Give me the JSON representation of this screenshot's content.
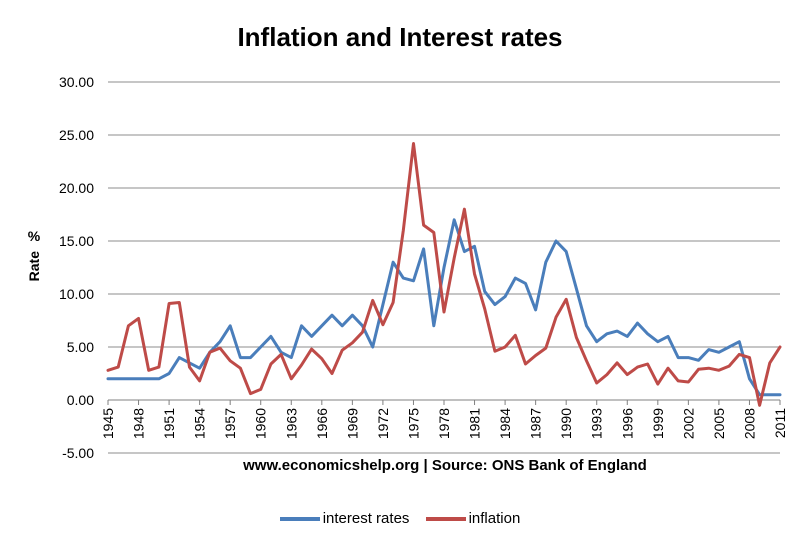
{
  "chart_data": {
    "type": "line",
    "title": "Inflation and Interest rates",
    "xlabel": "www.economicshelp.org | Source: ONS Bank of England",
    "ylabel": "% Rate",
    "ylim": [
      -5,
      30
    ],
    "yticks": [
      "-5.00",
      "0.00",
      "5.00",
      "10.00",
      "15.00",
      "20.00",
      "25.00",
      "30.00"
    ],
    "y_tick_values": [
      -5,
      0,
      5,
      10,
      15,
      20,
      25,
      30
    ],
    "grid": true,
    "legend_position": "bottom",
    "x": [
      1945,
      1946,
      1947,
      1948,
      1949,
      1950,
      1951,
      1952,
      1953,
      1954,
      1955,
      1956,
      1957,
      1958,
      1959,
      1960,
      1961,
      1962,
      1963,
      1964,
      1965,
      1966,
      1967,
      1968,
      1969,
      1970,
      1971,
      1972,
      1973,
      1974,
      1975,
      1976,
      1977,
      1978,
      1979,
      1980,
      1981,
      1982,
      1983,
      1984,
      1985,
      1986,
      1987,
      1988,
      1989,
      1990,
      1991,
      1992,
      1993,
      1994,
      1995,
      1996,
      1997,
      1998,
      1999,
      2000,
      2001,
      2002,
      2003,
      2004,
      2005,
      2006,
      2007,
      2008,
      2009,
      2010,
      2011
    ],
    "x_tick_labels": [
      "1945",
      "1948",
      "1951",
      "1954",
      "1957",
      "1960",
      "1963",
      "1966",
      "1969",
      "1972",
      "1975",
      "1978",
      "1981",
      "1984",
      "1987",
      "1990",
      "1993",
      "1996",
      "1999",
      "2002",
      "2005",
      "2008",
      "2011"
    ],
    "series": [
      {
        "name": "interest rates",
        "color": "#4a7ebb",
        "values": [
          2,
          2,
          2,
          2,
          2,
          2,
          2.5,
          4,
          3.5,
          3,
          4.5,
          5.5,
          7,
          4,
          4,
          5,
          6,
          4.5,
          4,
          7,
          6,
          7,
          8,
          7,
          8,
          7,
          5,
          9,
          13,
          11.5,
          11.25,
          14.25,
          7,
          12.5,
          17,
          14,
          14.5,
          10.25,
          9,
          9.75,
          11.5,
          11,
          8.5,
          13,
          15,
          14,
          10.5,
          7,
          5.5,
          6.25,
          6.5,
          6,
          7.25,
          6.25,
          5.5,
          6,
          4,
          4,
          3.75,
          4.75,
          4.5,
          5,
          5.5,
          2,
          0.5,
          0.5,
          0.5
        ]
      },
      {
        "name": "inflation",
        "color": "#be4b48",
        "values": [
          2.8,
          3.1,
          7,
          7.7,
          2.8,
          3.1,
          9.1,
          9.2,
          3.1,
          1.8,
          4.5,
          4.9,
          3.7,
          3,
          0.6,
          1,
          3.4,
          4.3,
          2,
          3.3,
          4.8,
          3.9,
          2.5,
          4.7,
          5.4,
          6.4,
          9.4,
          7.1,
          9.2,
          16,
          24.2,
          16.5,
          15.8,
          8.3,
          13.4,
          18,
          11.9,
          8.6,
          4.6,
          5,
          6.1,
          3.4,
          4.2,
          4.9,
          7.8,
          9.5,
          5.9,
          3.7,
          1.6,
          2.4,
          3.5,
          2.4,
          3.1,
          3.4,
          1.5,
          3,
          1.8,
          1.7,
          2.9,
          3,
          2.8,
          3.2,
          4.3,
          4,
          -0.5,
          3.5,
          5
        ]
      }
    ]
  }
}
